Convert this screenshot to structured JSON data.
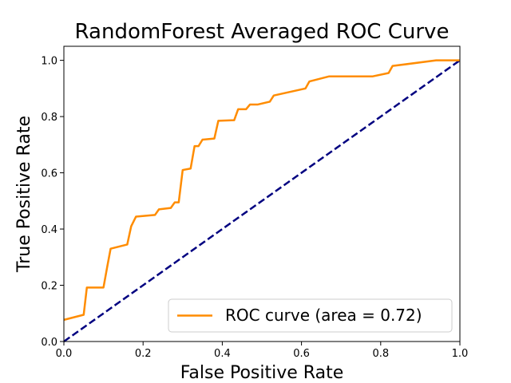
{
  "chart_data": {
    "type": "line",
    "title": "RandomForest Averaged ROC Curve",
    "xlabel": "False Positive Rate",
    "ylabel": "True Positive Rate",
    "xlim": [
      0.0,
      1.0
    ],
    "ylim": [
      0.0,
      1.05
    ],
    "xticks": [
      "0.0",
      "0.2",
      "0.4",
      "0.6",
      "0.8",
      "1.0"
    ],
    "yticks": [
      "0.0",
      "0.2",
      "0.4",
      "0.6",
      "0.8",
      "1.0"
    ],
    "grid": false,
    "legend_position": "lower-right",
    "series": [
      {
        "name": "ROC curve (area = 0.72)",
        "color": "#ff8c00",
        "style": "solid",
        "x": [
          0.0,
          0.05,
          0.058,
          0.1,
          0.11,
          0.118,
          0.16,
          0.17,
          0.182,
          0.23,
          0.24,
          0.27,
          0.28,
          0.29,
          0.3,
          0.32,
          0.33,
          0.34,
          0.35,
          0.38,
          0.39,
          0.43,
          0.44,
          0.46,
          0.47,
          0.49,
          0.52,
          0.53,
          0.61,
          0.62,
          0.67,
          0.78,
          0.82,
          0.83,
          0.94,
          1.0
        ],
        "y": [
          0.077,
          0.095,
          0.192,
          0.192,
          0.27,
          0.33,
          0.345,
          0.41,
          0.444,
          0.45,
          0.47,
          0.475,
          0.495,
          0.495,
          0.61,
          0.615,
          0.695,
          0.695,
          0.718,
          0.722,
          0.785,
          0.787,
          0.826,
          0.826,
          0.843,
          0.843,
          0.853,
          0.875,
          0.9,
          0.925,
          0.943,
          0.943,
          0.955,
          0.98,
          1.0,
          1.0
        ]
      },
      {
        "name": "",
        "color": "#000080",
        "style": "dashed",
        "x": [
          0.0,
          1.0
        ],
        "y": [
          0.0,
          1.0
        ]
      }
    ]
  }
}
